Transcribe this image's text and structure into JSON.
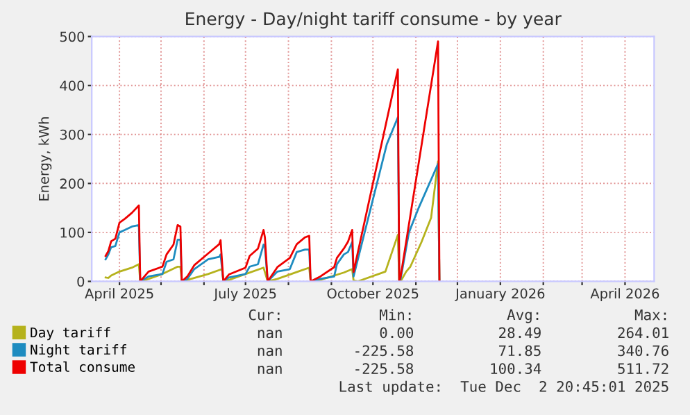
{
  "chart_data": {
    "type": "line",
    "title": "Energy - Day/night tariff consume - by year",
    "ylabel": "Energy, kWh",
    "xlim": [
      "2025-03-12",
      "2026-04-22"
    ],
    "ylim": [
      0,
      500
    ],
    "yticks": [
      0,
      100,
      200,
      300,
      400,
      500
    ],
    "xticks": [
      {
        "value": "2025-04-01",
        "label": "April 2025"
      },
      {
        "value": "2025-05-01",
        "label": null
      },
      {
        "value": "2025-06-01",
        "label": null
      },
      {
        "value": "2025-07-01",
        "label": "July 2025"
      },
      {
        "value": "2025-08-01",
        "label": null
      },
      {
        "value": "2025-09-01",
        "label": null
      },
      {
        "value": "2025-10-01",
        "label": "October 2025"
      },
      {
        "value": "2025-11-01",
        "label": null
      },
      {
        "value": "2025-12-01",
        "label": null
      },
      {
        "value": "2026-01-01",
        "label": "January 2026"
      },
      {
        "value": "2026-02-01",
        "label": null
      },
      {
        "value": "2026-03-01",
        "label": null
      },
      {
        "value": "2026-04-01",
        "label": "April 2026"
      }
    ],
    "grid": true,
    "legend": "bottom",
    "marker": "none",
    "line_style": "solid",
    "series": [
      {
        "name": "Day tariff",
        "color": "#b5b21c",
        "x": [
          "2025-03-22",
          "2025-03-24",
          "2025-03-26",
          "2025-04-01",
          "2025-04-10",
          "2025-04-15",
          "2025-04-16",
          "2025-04-22",
          "2025-05-02",
          "2025-05-13",
          "2025-05-15",
          "2025-05-16",
          "2025-05-20",
          "2025-06-04",
          "2025-06-14",
          "2025-06-15",
          "2025-06-19",
          "2025-07-01",
          "2025-07-14",
          "2025-07-17",
          "2025-07-24",
          "2025-08-10",
          "2025-08-16",
          "2025-08-17",
          "2025-08-24",
          "2025-09-10",
          "2025-09-16",
          "2025-09-17",
          "2025-09-20",
          "2025-10-10",
          "2025-10-19",
          "2025-10-20",
          "2025-10-21",
          "2025-10-25",
          "2025-10-28",
          "2025-11-05",
          "2025-11-12",
          "2025-11-17",
          "2025-11-18"
        ],
        "values": [
          8,
          7,
          12,
          20,
          28,
          35,
          0,
          5,
          15,
          30,
          30,
          0,
          3,
          15,
          25,
          0,
          3,
          15,
          28,
          0,
          5,
          22,
          28,
          0,
          3,
          18,
          25,
          2,
          0,
          20,
          95,
          0,
          0,
          20,
          30,
          80,
          130,
          245,
          0
        ]
      },
      {
        "name": "Night tariff",
        "color": "#1e8cc0",
        "x": [
          "2025-03-22",
          "2025-03-24",
          "2025-03-26",
          "2025-03-29",
          "2025-04-01",
          "2025-04-05",
          "2025-04-10",
          "2025-04-15",
          "2025-04-16",
          "2025-04-22",
          "2025-05-02",
          "2025-05-05",
          "2025-05-10",
          "2025-05-13",
          "2025-05-15",
          "2025-05-16",
          "2025-05-20",
          "2025-05-25",
          "2025-06-04",
          "2025-06-12",
          "2025-06-13",
          "2025-06-15",
          "2025-06-19",
          "2025-07-01",
          "2025-07-04",
          "2025-07-10",
          "2025-07-14",
          "2025-07-15",
          "2025-07-17",
          "2025-07-24",
          "2025-08-02",
          "2025-08-07",
          "2025-08-13",
          "2025-08-16",
          "2025-08-17",
          "2025-08-24",
          "2025-09-03",
          "2025-09-05",
          "2025-09-10",
          "2025-09-13",
          "2025-09-16",
          "2025-09-17",
          "2025-10-11",
          "2025-10-19",
          "2025-10-20",
          "2025-10-21",
          "2025-10-27",
          "2025-11-03",
          "2025-11-10",
          "2025-11-17",
          "2025-11-18"
        ],
        "values": [
          45,
          55,
          70,
          72,
          100,
          105,
          112,
          115,
          0,
          10,
          15,
          40,
          45,
          85,
          85,
          0,
          5,
          25,
          45,
          50,
          55,
          0,
          8,
          15,
          30,
          35,
          75,
          70,
          0,
          20,
          25,
          60,
          65,
          65,
          0,
          5,
          10,
          35,
          55,
          60,
          80,
          10,
          280,
          335,
          0,
          5,
          100,
          150,
          195,
          240,
          0
        ]
      },
      {
        "name": "Total consume",
        "color": "#ee0000",
        "x": [
          "2025-03-22",
          "2025-03-24",
          "2025-03-26",
          "2025-03-29",
          "2025-04-01",
          "2025-04-05",
          "2025-04-10",
          "2025-04-15",
          "2025-04-16",
          "2025-04-22",
          "2025-05-02",
          "2025-05-05",
          "2025-05-10",
          "2025-05-13",
          "2025-05-15",
          "2025-05-16",
          "2025-05-20",
          "2025-05-25",
          "2025-06-04",
          "2025-06-12",
          "2025-06-13",
          "2025-06-15",
          "2025-06-19",
          "2025-07-01",
          "2025-07-04",
          "2025-07-10",
          "2025-07-14",
          "2025-07-15",
          "2025-07-17",
          "2025-07-24",
          "2025-08-02",
          "2025-08-07",
          "2025-08-13",
          "2025-08-16",
          "2025-08-17",
          "2025-08-24",
          "2025-09-03",
          "2025-09-05",
          "2025-09-10",
          "2025-09-13",
          "2025-09-16",
          "2025-09-17",
          "2025-10-19",
          "2025-10-20",
          "2025-10-21",
          "2025-11-17",
          "2025-11-18"
        ],
        "values": [
          52,
          62,
          82,
          87,
          120,
          128,
          140,
          155,
          0,
          20,
          30,
          55,
          75,
          115,
          112,
          0,
          10,
          33,
          57,
          76,
          84,
          0,
          14,
          28,
          52,
          67,
          105,
          90,
          0,
          29,
          48,
          76,
          90,
          93,
          0,
          10,
          29,
          48,
          67,
          81,
          105,
          19,
          433,
          0,
          10,
          490,
          0
        ]
      }
    ],
    "annotations": [
      "Cur:",
      "Min:",
      "Avg:",
      "Max:",
      "nan",
      "0.00",
      "28.49",
      "264.01",
      "nan",
      "-225.58",
      "71.85",
      "340.76",
      "nan",
      "-225.58",
      "100.34",
      "511.72",
      "Last update:  Tue Dec  2 20:45:01 2025"
    ]
  }
}
